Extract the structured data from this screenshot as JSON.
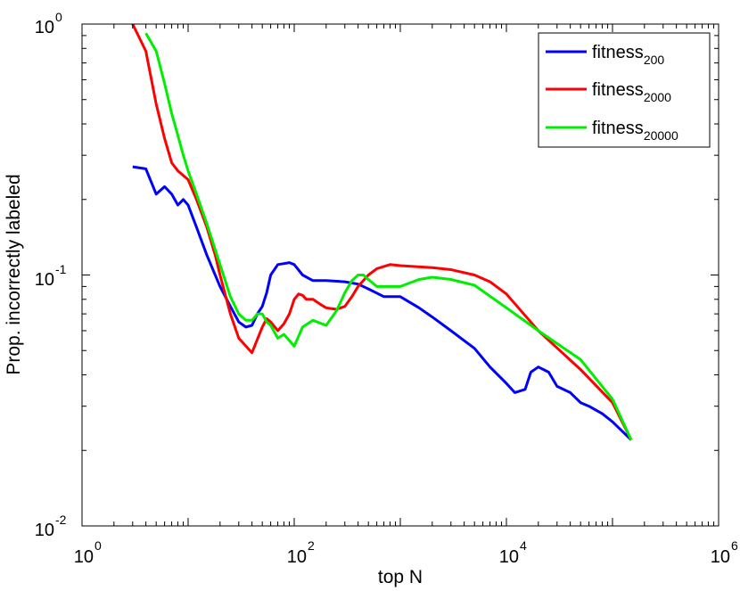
{
  "chart_data": {
    "type": "line",
    "title": "",
    "xlabel": "top N",
    "ylabel": "Prop. incorrectly labeled",
    "xscale": "log",
    "yscale": "log",
    "xlim": [
      1,
      1000000
    ],
    "ylim": [
      0.01,
      1
    ],
    "x_ticks": [
      {
        "base": "10",
        "exp": "0",
        "value": 1
      },
      {
        "base": "10",
        "exp": "2",
        "value": 100
      },
      {
        "base": "10",
        "exp": "4",
        "value": 10000
      },
      {
        "base": "10",
        "exp": "6",
        "value": 1000000
      }
    ],
    "y_ticks": [
      {
        "base": "10",
        "exp": "-2",
        "value": 0.01
      },
      {
        "base": "10",
        "exp": "-1",
        "value": 0.1
      },
      {
        "base": "10",
        "exp": "0",
        "value": 1
      }
    ],
    "legend_location": "top-right",
    "grid": false,
    "series": [
      {
        "name": "fitness",
        "subscript": "200",
        "color": "#0000ff",
        "x": [
          3,
          4,
          5,
          6,
          7,
          8,
          9,
          10,
          12,
          15,
          20,
          25,
          30,
          35,
          40,
          45,
          50,
          55,
          60,
          70,
          80,
          90,
          100,
          120,
          150,
          200,
          300,
          400,
          500,
          700,
          1000,
          1500,
          2000,
          3000,
          5000,
          7000,
          10000,
          12000,
          15000,
          17000,
          20000,
          25000,
          30000,
          40000,
          50000,
          60000,
          80000,
          100000,
          150000
        ],
        "values": [
          0.27,
          0.265,
          0.21,
          0.225,
          0.21,
          0.19,
          0.2,
          0.19,
          0.155,
          0.12,
          0.09,
          0.075,
          0.065,
          0.062,
          0.063,
          0.07,
          0.075,
          0.085,
          0.1,
          0.11,
          0.111,
          0.112,
          0.11,
          0.1,
          0.095,
          0.095,
          0.094,
          0.092,
          0.088,
          0.082,
          0.082,
          0.074,
          0.068,
          0.06,
          0.051,
          0.043,
          0.037,
          0.034,
          0.035,
          0.041,
          0.043,
          0.041,
          0.036,
          0.034,
          0.031,
          0.03,
          0.028,
          0.026,
          0.022
        ]
      },
      {
        "name": "fitness",
        "subscript": "2000",
        "color": "#ff0000",
        "x": [
          3,
          4,
          5,
          6,
          7,
          8,
          10,
          12,
          15,
          18,
          20,
          25,
          30,
          40,
          50,
          55,
          60,
          70,
          80,
          90,
          100,
          110,
          120,
          130,
          150,
          180,
          200,
          250,
          300,
          350,
          400,
          500,
          600,
          800,
          1000,
          2000,
          3000,
          5000,
          7000,
          10000,
          20000,
          50000,
          100000,
          150000
        ],
        "values": [
          1.0,
          0.78,
          0.48,
          0.35,
          0.28,
          0.26,
          0.24,
          0.2,
          0.155,
          0.12,
          0.1,
          0.07,
          0.056,
          0.049,
          0.062,
          0.067,
          0.065,
          0.06,
          0.064,
          0.07,
          0.08,
          0.084,
          0.083,
          0.08,
          0.08,
          0.076,
          0.074,
          0.073,
          0.075,
          0.082,
          0.09,
          0.1,
          0.106,
          0.11,
          0.109,
          0.107,
          0.105,
          0.1,
          0.094,
          0.084,
          0.06,
          0.042,
          0.031,
          0.022
        ]
      },
      {
        "name": "fitness",
        "subscript": "20000",
        "color": "#00ee00",
        "x": [
          4,
          5,
          6,
          7,
          8,
          9,
          10,
          12,
          15,
          20,
          25,
          30,
          35,
          40,
          45,
          50,
          55,
          60,
          70,
          80,
          100,
          120,
          150,
          200,
          250,
          300,
          350,
          400,
          450,
          500,
          600,
          800,
          1000,
          1500,
          2000,
          3000,
          5000,
          10000,
          20000,
          50000,
          100000,
          150000
        ],
        "values": [
          0.92,
          0.78,
          0.58,
          0.44,
          0.36,
          0.3,
          0.26,
          0.21,
          0.16,
          0.11,
          0.082,
          0.07,
          0.066,
          0.066,
          0.07,
          0.07,
          0.065,
          0.063,
          0.056,
          0.058,
          0.052,
          0.062,
          0.066,
          0.063,
          0.072,
          0.085,
          0.095,
          0.1,
          0.1,
          0.096,
          0.09,
          0.09,
          0.09,
          0.096,
          0.098,
          0.096,
          0.091,
          0.074,
          0.06,
          0.046,
          0.032,
          0.022
        ]
      }
    ]
  }
}
